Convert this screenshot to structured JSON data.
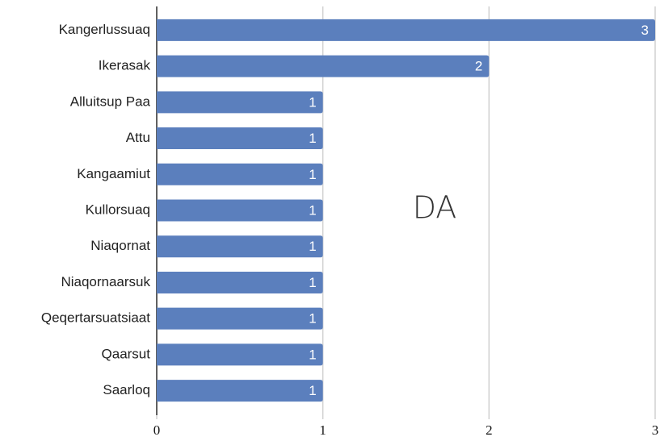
{
  "chart_data": {
    "type": "bar",
    "orientation": "horizontal",
    "categories": [
      "Kangerlussuaq",
      "Ikerasak",
      "Alluitsup Paa",
      "Attu",
      "Kangaamiut",
      "Kullorsuaq",
      "Niaqornat",
      "Niaqornaarsuk",
      "Qeqertarsuatsiaat",
      "Qaarsut",
      "Saarloq"
    ],
    "values": [
      3,
      2,
      1,
      1,
      1,
      1,
      1,
      1,
      1,
      1,
      1
    ],
    "color": "#5b7fbd",
    "xlim": [
      0,
      3
    ],
    "xticks": [
      0,
      1,
      2,
      3
    ],
    "grid": true,
    "annotation": "DA"
  }
}
